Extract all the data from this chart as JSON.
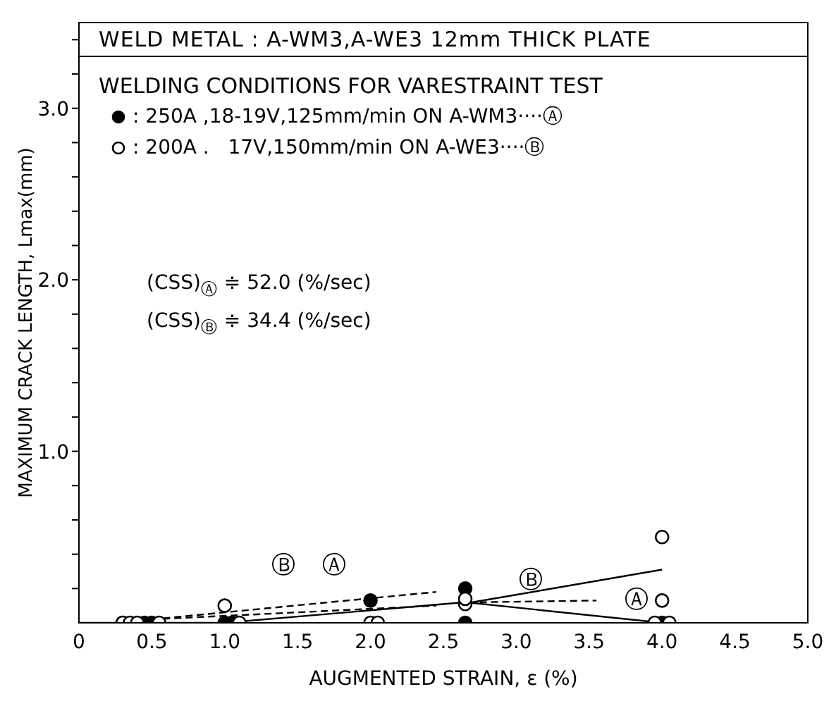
{
  "chart_data": {
    "type": "scatter",
    "title": "WELD METAL : A-WM3,A-WE3  12mm THICK PLATE",
    "legend_title": "WELDING CONDITIONS FOR VARESTRAINT TEST",
    "xlabel": "AUGMENTED STRAIN, ε (%)",
    "ylabel": "MAXIMUM CRACK LENGTH, Lmax(mm)",
    "xlim": [
      0,
      5
    ],
    "ylim": [
      0,
      3.5
    ],
    "xticks": [
      0,
      {
        "value": 0.5,
        "label": "0.5"
      },
      {
        "value": 1,
        "label": "1.0"
      },
      {
        "value": 1.5,
        "label": "1.5"
      },
      {
        "value": 2,
        "label": "2.0"
      },
      {
        "value": 2.5,
        "label": "2.5"
      },
      {
        "value": 3,
        "label": "3.0"
      },
      {
        "value": 3.5,
        "label": "3.5"
      },
      {
        "value": 4,
        "label": "4.0"
      },
      {
        "value": 4.5,
        "label": "4.5"
      },
      {
        "value": 5,
        "label": "5.0"
      }
    ],
    "yticks": [
      {
        "value": 0.2,
        "label": null
      },
      {
        "value": 0.4,
        "label": null
      },
      {
        "value": 0.6,
        "label": null
      },
      {
        "value": 0.8,
        "label": null
      },
      {
        "value": 1,
        "label": "1.0"
      },
      {
        "value": 1.2,
        "label": null
      },
      {
        "value": 1.4,
        "label": null
      },
      {
        "value": 1.6,
        "label": null
      },
      {
        "value": 1.8,
        "label": null
      },
      {
        "value": 2,
        "label": "2.0"
      },
      {
        "value": 2.2,
        "label": null
      },
      {
        "value": 2.4,
        "label": null
      },
      {
        "value": 2.6,
        "label": null
      },
      {
        "value": 2.8,
        "label": null
      },
      {
        "value": 3,
        "label": "3.0"
      },
      {
        "value": 3.2,
        "label": null
      },
      {
        "value": 3.4,
        "label": null
      }
    ],
    "grid": false,
    "legend": "top left",
    "marker": "circle",
    "series": [
      {
        "name": ": 250A ,18-19V,125mm/min ON A-WM3····Ⓐ",
        "color": "#000000",
        "x": [
          0.3,
          0.45,
          0.5,
          1.0,
          1.05,
          2.0,
          2.65,
          2.65,
          4.0
        ],
        "values": [
          0,
          0,
          0,
          0,
          0,
          0.13,
          0.2,
          0,
          0
        ]
      },
      {
        "name": ": 200A .   17V,150mm/min ON A-WE3····Ⓑ",
        "color": "#000000",
        "x": [
          0.3,
          0.35,
          0.4,
          0.55,
          1.0,
          1.1,
          2.0,
          2.05,
          2.65,
          2.65,
          3.95,
          4.05,
          4.0,
          4.0
        ],
        "values": [
          0,
          0,
          0,
          0,
          0.1,
          0,
          0,
          0,
          0.11,
          0.14,
          0,
          0,
          0.5,
          0.13
        ]
      },
      {
        "type": "line",
        "marker": "none",
        "color": "#000000",
        "line_style": "solid",
        "x": [
          0,
          1.0,
          2.65,
          4.0
        ],
        "values": [
          0,
          0,
          0.12,
          0
        ]
      },
      {
        "type": "line",
        "marker": "none",
        "color": "#000000",
        "line_style": "solid",
        "x": [
          2.7,
          4.0
        ],
        "values": [
          0.12,
          0.31
        ]
      },
      {
        "type": "line",
        "marker": "none",
        "color": "#000000",
        "line_style": "dashed",
        "x": [
          0.5,
          2.45
        ],
        "values": [
          0.02,
          0.18
        ]
      },
      {
        "type": "line",
        "marker": "none",
        "color": "#000000",
        "line_style": "dashed",
        "x": [
          0.5,
          2.45
        ],
        "values": [
          0.02,
          0.1
        ]
      },
      {
        "type": "line",
        "marker": "none",
        "color": "#000000",
        "line_style": "dashed",
        "x": [
          2.75,
          3.55
        ],
        "values": [
          0.12,
          0.13
        ]
      }
    ],
    "annotations": [
      "(CSS)$_{Ⓐ}$ ≑ 52.0 (%/sec)",
      "(CSS)$_{Ⓑ}$ ≑ 34.4 (%/sec)",
      "Ⓑ",
      "Ⓐ",
      "Ⓑ",
      "Ⓐ"
    ]
  }
}
